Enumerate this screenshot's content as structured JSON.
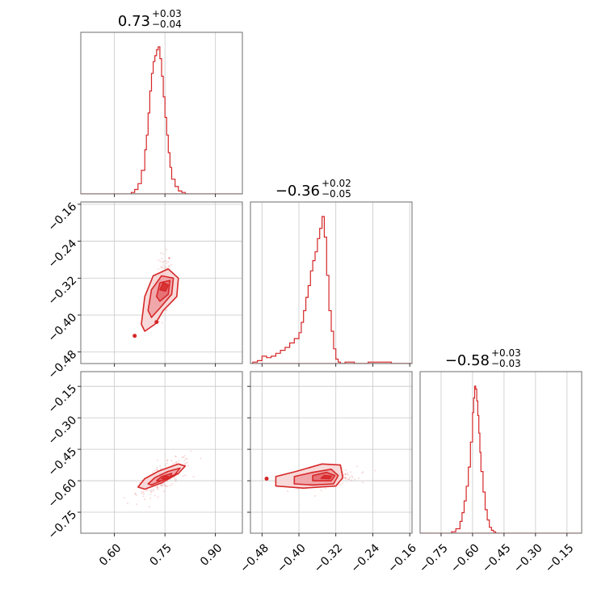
{
  "chart_data": {
    "type": "corner",
    "color": "#d62728",
    "fill_colors": [
      "#f7d3d4",
      "#ee9ea1",
      "#e4686d",
      "#d62728"
    ],
    "grid": true,
    "parameters": [
      {
        "median": 0.73,
        "plus": 0.03,
        "minus": 0.04,
        "title_main": "0.73",
        "title_plus": "+0.03",
        "title_minus": "−0.04",
        "range": [
          0.5,
          0.98
        ],
        "ticks": [
          0.6,
          0.75,
          0.9
        ],
        "tick_labels": [
          "0.60",
          "0.75",
          "0.90"
        ],
        "hist_x": [
          0.65,
          0.66,
          0.67,
          0.68,
          0.69,
          0.695,
          0.7,
          0.705,
          0.71,
          0.715,
          0.72,
          0.725,
          0.73,
          0.735,
          0.74,
          0.745,
          0.75,
          0.755,
          0.76,
          0.765,
          0.77,
          0.78,
          0.79,
          0.8,
          0.81
        ],
        "hist_y": [
          0.01,
          0.03,
          0.07,
          0.16,
          0.3,
          0.4,
          0.55,
          0.7,
          0.82,
          0.9,
          0.94,
          0.98,
          1.0,
          0.92,
          0.8,
          0.66,
          0.52,
          0.4,
          0.28,
          0.18,
          0.1,
          0.05,
          0.02,
          0.01,
          0.0
        ]
      },
      {
        "median": -0.36,
        "plus": 0.02,
        "minus": 0.05,
        "title_main": "−0.36",
        "title_plus": "+0.02",
        "title_minus": "−0.05",
        "range": [
          -0.505,
          -0.155
        ],
        "ticks": [
          -0.48,
          -0.4,
          -0.32,
          -0.24,
          -0.16
        ],
        "tick_labels": [
          "−0.48",
          "−0.40",
          "−0.32",
          "−0.24",
          "−0.16"
        ],
        "hist_x": [
          -0.5,
          -0.49,
          -0.48,
          -0.47,
          -0.46,
          -0.45,
          -0.44,
          -0.43,
          -0.42,
          -0.41,
          -0.4,
          -0.395,
          -0.39,
          -0.385,
          -0.38,
          -0.375,
          -0.37,
          -0.365,
          -0.36,
          -0.355,
          -0.35,
          -0.345,
          -0.34,
          -0.335,
          -0.33,
          -0.325,
          -0.32,
          -0.315,
          -0.31,
          -0.3,
          -0.28,
          -0.25,
          -0.2,
          -0.16
        ],
        "hist_y": [
          0.01,
          0.02,
          0.05,
          0.04,
          0.05,
          0.07,
          0.09,
          0.11,
          0.14,
          0.17,
          0.21,
          0.28,
          0.36,
          0.45,
          0.53,
          0.63,
          0.7,
          0.76,
          0.85,
          0.92,
          1.0,
          0.86,
          0.6,
          0.36,
          0.22,
          0.1,
          0.03,
          0.01,
          0.0,
          0.01,
          0.0,
          0.01,
          0.0,
          0.0
        ]
      },
      {
        "median": -0.58,
        "plus": 0.03,
        "minus": 0.03,
        "title_main": "−0.58",
        "title_plus": "+0.03",
        "title_minus": "−0.03",
        "range": [
          -0.85,
          -0.08
        ],
        "ticks": [
          -0.75,
          -0.6,
          -0.45,
          -0.3,
          -0.15
        ],
        "tick_labels": [
          "−0.75",
          "−0.60",
          "−0.45",
          "−0.30",
          "−0.15"
        ],
        "hist_x": [
          -0.7,
          -0.68,
          -0.66,
          -0.65,
          -0.64,
          -0.63,
          -0.62,
          -0.61,
          -0.6,
          -0.595,
          -0.59,
          -0.585,
          -0.58,
          -0.575,
          -0.57,
          -0.565,
          -0.56,
          -0.55,
          -0.54,
          -0.53,
          -0.52,
          -0.51,
          -0.5,
          -0.49
        ],
        "hist_y": [
          0.01,
          0.03,
          0.08,
          0.14,
          0.22,
          0.32,
          0.45,
          0.62,
          0.82,
          0.92,
          1.0,
          0.98,
          0.9,
          0.8,
          0.68,
          0.55,
          0.42,
          0.28,
          0.16,
          0.09,
          0.04,
          0.02,
          0.01,
          0.0
        ]
      }
    ],
    "pairs": [
      {
        "row": 1,
        "col": 0,
        "center": [
          0.745,
          -0.335
        ],
        "contours": [
          {
            "level": "outer",
            "points": [
              [
                0.68,
                -0.42
              ],
              [
                0.69,
                -0.36
              ],
              [
                0.715,
                -0.315
              ],
              [
                0.76,
                -0.3
              ],
              [
                0.79,
                -0.32
              ],
              [
                0.785,
                -0.36
              ],
              [
                0.745,
                -0.39
              ],
              [
                0.72,
                -0.42
              ],
              [
                0.69,
                -0.435
              ]
            ]
          },
          {
            "level": "mid",
            "points": [
              [
                0.7,
                -0.39
              ],
              [
                0.71,
                -0.345
              ],
              [
                0.74,
                -0.315
              ],
              [
                0.775,
                -0.32
              ],
              [
                0.77,
                -0.355
              ],
              [
                0.735,
                -0.385
              ],
              [
                0.71,
                -0.405
              ]
            ]
          },
          {
            "level": "inner",
            "points": [
              [
                0.725,
                -0.36
              ],
              [
                0.735,
                -0.33
              ],
              [
                0.765,
                -0.325
              ],
              [
                0.76,
                -0.355
              ],
              [
                0.735,
                -0.37
              ]
            ]
          },
          {
            "level": "core",
            "points": [
              [
                0.735,
                -0.345
              ],
              [
                0.745,
                -0.33
              ],
              [
                0.76,
                -0.335
              ],
              [
                0.752,
                -0.348
              ]
            ]
          }
        ],
        "isolated": [
          [
            0.66,
            -0.445
          ],
          [
            0.725,
            -0.415
          ]
        ],
        "scatter_x": [
          0.6,
          0.67
        ],
        "scatter_y": [
          -0.49,
          -0.29
        ]
      },
      {
        "row": 2,
        "col": 0,
        "center": [
          0.745,
          -0.585
        ],
        "contours": [
          {
            "level": "outer",
            "points": [
              [
                0.67,
                -0.63
              ],
              [
                0.69,
                -0.59
              ],
              [
                0.73,
                -0.555
              ],
              [
                0.79,
                -0.52
              ],
              [
                0.81,
                -0.53
              ],
              [
                0.79,
                -0.565
              ],
              [
                0.74,
                -0.61
              ],
              [
                0.69,
                -0.64
              ]
            ]
          },
          {
            "level": "mid",
            "points": [
              [
                0.7,
                -0.615
              ],
              [
                0.72,
                -0.585
              ],
              [
                0.76,
                -0.555
              ],
              [
                0.795,
                -0.54
              ],
              [
                0.78,
                -0.57
              ],
              [
                0.74,
                -0.6
              ],
              [
                0.71,
                -0.62
              ]
            ]
          },
          {
            "level": "inner",
            "points": [
              [
                0.725,
                -0.6
              ],
              [
                0.74,
                -0.58
              ],
              [
                0.77,
                -0.565
              ],
              [
                0.765,
                -0.585
              ],
              [
                0.74,
                -0.6
              ]
            ]
          },
          {
            "level": "core",
            "points": [
              [
                0.74,
                -0.59
              ],
              [
                0.752,
                -0.578
              ],
              [
                0.762,
                -0.58
              ],
              [
                0.752,
                -0.592
              ]
            ]
          }
        ],
        "isolated": [],
        "scatter_x": [
          0.64,
          0.88
        ],
        "scatter_y": [
          -0.67,
          -0.47
        ]
      },
      {
        "row": 2,
        "col": 1,
        "center": [
          -0.345,
          -0.585
        ],
        "contours": [
          {
            "level": "outer",
            "points": [
              [
                -0.45,
                -0.625
              ],
              [
                -0.45,
                -0.58
              ],
              [
                -0.405,
                -0.555
              ],
              [
                -0.35,
                -0.52
              ],
              [
                -0.31,
                -0.525
              ],
              [
                -0.305,
                -0.585
              ],
              [
                -0.32,
                -0.625
              ],
              [
                -0.39,
                -0.635
              ]
            ]
          },
          {
            "level": "mid",
            "points": [
              [
                -0.41,
                -0.615
              ],
              [
                -0.41,
                -0.58
              ],
              [
                -0.37,
                -0.56
              ],
              [
                -0.33,
                -0.545
              ],
              [
                -0.315,
                -0.575
              ],
              [
                -0.325,
                -0.615
              ],
              [
                -0.37,
                -0.62
              ]
            ]
          },
          {
            "level": "inner",
            "points": [
              [
                -0.37,
                -0.6
              ],
              [
                -0.37,
                -0.575
              ],
              [
                -0.34,
                -0.56
              ],
              [
                -0.322,
                -0.575
              ],
              [
                -0.33,
                -0.6
              ]
            ]
          },
          {
            "level": "core",
            "points": [
              [
                -0.352,
                -0.588
              ],
              [
                -0.345,
                -0.575
              ],
              [
                -0.33,
                -0.578
              ],
              [
                -0.333,
                -0.59
              ]
            ]
          }
        ],
        "isolated": [
          [
            -0.47,
            -0.59
          ]
        ],
        "scatter_x": [
          -0.5,
          -0.29
        ],
        "scatter_y": [
          -0.66,
          -0.52
        ]
      }
    ]
  }
}
